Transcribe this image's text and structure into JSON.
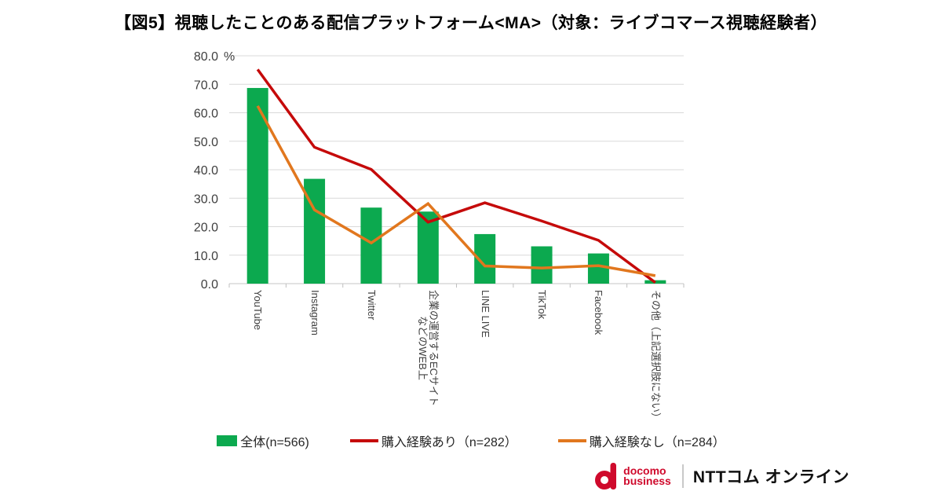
{
  "title": "【図5】視聴したことのある配信プラットフォーム<MA>（対象：ライブコマース視聴経験者）",
  "chart_data": {
    "type": "bar+line",
    "title": "視聴したことのある配信プラットフォーム<MA>",
    "categories": [
      "YouTube",
      "Instagram",
      "Twitter",
      "企業の運営するECサイト\nなどのWEB上",
      "LINE LIVE",
      "TikTok",
      "Facebook",
      "その他（上記選択肢にない）"
    ],
    "series": [
      {
        "name": "全体(n=566)",
        "type": "bar",
        "color": "#0ca94f",
        "values": [
          68.7,
          36.8,
          26.7,
          25.3,
          17.4,
          13.1,
          10.6,
          1.2
        ]
      },
      {
        "name": "購入経験あり（n=282）",
        "type": "line",
        "color": "#c50a0a",
        "values": [
          75.2,
          47.9,
          40.1,
          21.6,
          28.4,
          22.0,
          15.2,
          0.4
        ]
      },
      {
        "name": "購入経験なし（n=284）",
        "type": "line",
        "color": "#e1771e",
        "values": [
          62.4,
          25.9,
          14.3,
          28.1,
          6.2,
          5.5,
          6.3,
          2.8
        ]
      }
    ],
    "xlabel": "",
    "ylabel": "%",
    "ylim": [
      0,
      80
    ],
    "yticks": [
      0,
      10,
      20,
      30,
      40,
      50,
      60,
      70,
      80
    ],
    "grid": true,
    "gridline_color": "#d9d9d9",
    "legend_position": "bottom"
  },
  "logo": {
    "brand_line1": "docomo",
    "brand_line2": "business",
    "product": "NTTコム オンライン"
  }
}
